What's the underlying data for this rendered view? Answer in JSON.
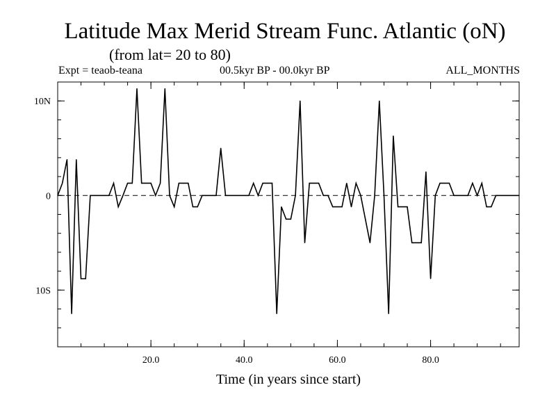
{
  "chart_data": {
    "type": "line",
    "title": "Latitude Max Merid Stream Func. Atlantic (oN)",
    "subtitle": "(from lat= 20 to 80)",
    "header_left": "Expt = teaob-teana",
    "header_center": "00.5kyr BP - 00.0kyr BP",
    "header_right": "ALL_MONTHS",
    "xlabel": "Time (in years since start)",
    "ylabel": "",
    "xlim": [
      0,
      99
    ],
    "ylim": [
      -16,
      12
    ],
    "x_ticks": [
      {
        "value": 20,
        "label": "20.0"
      },
      {
        "value": 40,
        "label": "40.0"
      },
      {
        "value": 60,
        "label": "60.0"
      },
      {
        "value": 80,
        "label": "80.0"
      }
    ],
    "y_ticks": [
      {
        "value": 10,
        "label": "10N"
      },
      {
        "value": 0,
        "label": "0"
      },
      {
        "value": -10,
        "label": "10S"
      }
    ],
    "reference_line": {
      "y": 0,
      "style": "dashed"
    },
    "series": [
      {
        "name": "Latitude Max Merid Stream Func",
        "x": [
          0,
          1,
          2,
          3,
          4,
          5,
          6,
          7,
          8,
          9,
          10,
          11,
          12,
          13,
          14,
          15,
          16,
          17,
          18,
          19,
          20,
          21,
          22,
          23,
          24,
          25,
          26,
          27,
          28,
          29,
          30,
          31,
          32,
          33,
          34,
          35,
          36,
          37,
          38,
          39,
          40,
          41,
          42,
          43,
          44,
          45,
          46,
          47,
          48,
          49,
          50,
          51,
          52,
          53,
          54,
          55,
          56,
          57,
          58,
          59,
          60,
          61,
          62,
          63,
          64,
          65,
          66,
          67,
          68,
          69,
          70,
          71,
          72,
          73,
          74,
          75,
          76,
          77,
          78,
          79,
          80,
          81,
          82,
          83,
          84,
          85,
          86,
          87,
          88,
          89,
          90,
          91,
          92,
          93,
          94,
          95,
          96,
          97,
          98,
          99
        ],
        "values": [
          0,
          1.3,
          3.8,
          -12.5,
          3.8,
          -8.8,
          -8.8,
          0,
          0,
          0,
          0,
          0,
          1.3,
          -1.2,
          0,
          1.3,
          1.3,
          11.3,
          1.3,
          1.3,
          1.3,
          0,
          1.3,
          11.3,
          0,
          -1.2,
          1.3,
          1.3,
          1.3,
          -1.2,
          -1.2,
          0,
          0,
          0,
          0,
          5,
          0,
          0,
          0,
          0,
          0,
          0,
          1.3,
          0,
          1.3,
          1.3,
          1.3,
          -12.5,
          -1.2,
          -2.5,
          -2.5,
          0,
          10,
          -5,
          1.3,
          1.3,
          1.3,
          0,
          0,
          -1.2,
          -1.2,
          -1.2,
          1.3,
          -1.2,
          1.3,
          0,
          -2.5,
          -5,
          0,
          10,
          0,
          -12.5,
          6.3,
          -1.2,
          -1.2,
          -1.2,
          -5,
          -5,
          -5,
          2.5,
          -8.8,
          0,
          1.3,
          1.3,
          1.3,
          0,
          0,
          0,
          0,
          1.3,
          0,
          1.3,
          -1.2,
          -1.2,
          0,
          0,
          0,
          0,
          0,
          0
        ]
      }
    ]
  }
}
